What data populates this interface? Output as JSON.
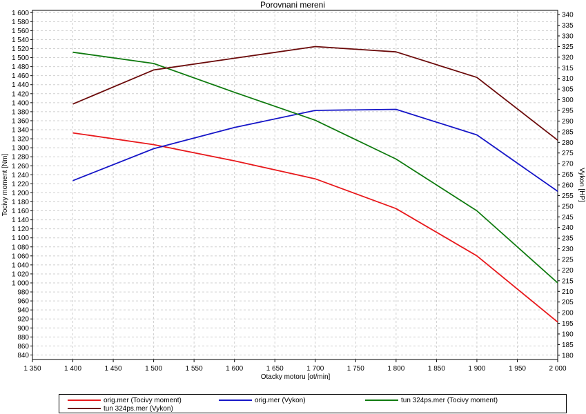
{
  "chart_data": {
    "type": "line",
    "title": "Porovnani mereni",
    "xlabel": "Otacky motoru [ot/min]",
    "ylabel_left": "Tocivy moment [Nm]",
    "ylabel_right": "Vykon [HP]",
    "xlim": [
      1350,
      2000
    ],
    "ylim_left": [
      830,
      1605
    ],
    "ylim_right": [
      178,
      342
    ],
    "x_ticks": [
      1350,
      1400,
      1450,
      1500,
      1550,
      1600,
      1650,
      1700,
      1750,
      1800,
      1850,
      1900,
      1950,
      2000
    ],
    "x_tick_labels": [
      "1 350",
      "1 400",
      "1 450",
      "1 500",
      "1 550",
      "1 600",
      "1 650",
      "1 700",
      "1 750",
      "1 800",
      "1 850",
      "1 900",
      "1 950",
      "2 000"
    ],
    "y_left_ticks": [
      840,
      860,
      880,
      900,
      920,
      940,
      960,
      980,
      1000,
      1020,
      1040,
      1060,
      1080,
      1100,
      1120,
      1140,
      1160,
      1180,
      1200,
      1220,
      1240,
      1260,
      1280,
      1300,
      1320,
      1340,
      1360,
      1380,
      1400,
      1420,
      1440,
      1460,
      1480,
      1500,
      1520,
      1540,
      1560,
      1580,
      1600
    ],
    "y_left_tick_labels": [
      "840",
      "860",
      "880",
      "900",
      "920",
      "940",
      "960",
      "980",
      "1 000",
      "1 020",
      "1 040",
      "1 060",
      "1 080",
      "1 100",
      "1 120",
      "1 140",
      "1 160",
      "1 180",
      "1 200",
      "1 220",
      "1 240",
      "1 260",
      "1 280",
      "1 300",
      "1 320",
      "1 340",
      "1 360",
      "1 380",
      "1 400",
      "1 420",
      "1 440",
      "1 460",
      "1 480",
      "1 500",
      "1 520",
      "1 540",
      "1 560",
      "1 580",
      "1 600"
    ],
    "y_right_ticks": [
      180,
      185,
      190,
      195,
      200,
      205,
      210,
      215,
      220,
      225,
      230,
      235,
      240,
      245,
      250,
      255,
      260,
      265,
      270,
      275,
      280,
      285,
      290,
      295,
      300,
      305,
      310,
      315,
      320,
      325,
      330,
      335,
      340
    ],
    "y_right_tick_labels": [
      "180",
      "185",
      "190",
      "195",
      "200",
      "205",
      "210",
      "215",
      "220",
      "225",
      "230",
      "235",
      "240",
      "245",
      "250",
      "255",
      "260",
      "265",
      "270",
      "275",
      "280",
      "285",
      "290",
      "295",
      "300",
      "305",
      "310",
      "315",
      "320",
      "325",
      "330",
      "335",
      "340"
    ],
    "grid": true,
    "legend_position": "bottom",
    "series": [
      {
        "name": "orig.mer  (Tocivy moment)",
        "axis": "left",
        "color": "#e8191c",
        "x": [
          1400,
          1500,
          1600,
          1700,
          1800,
          1900,
          2000
        ],
        "y": [
          1333,
          1307,
          1271,
          1231,
          1165,
          1060,
          913
        ]
      },
      {
        "name": "orig.mer  (Vykon)",
        "axis": "right",
        "color": "#1616c8",
        "x": [
          1400,
          1500,
          1600,
          1700,
          1800,
          1900,
          2000
        ],
        "y": [
          262,
          277,
          287,
          295,
          295.5,
          283.5,
          257
        ]
      },
      {
        "name": "tun 324ps.mer  (Tocivy moment)",
        "axis": "left",
        "color": "#0f7a0f",
        "x": [
          1400,
          1500,
          1600,
          1700,
          1800,
          1900,
          2000
        ],
        "y": [
          1512,
          1487,
          1423,
          1361,
          1275,
          1160,
          1000
        ]
      },
      {
        "name": "tun 324ps.mer  (Vykon)",
        "axis": "right",
        "color": "#6b0a0a",
        "x": [
          1400,
          1500,
          1600,
          1700,
          1800,
          1900,
          2000
        ],
        "y": [
          298,
          314,
          319.5,
          325,
          322.5,
          310.5,
          281
        ]
      }
    ]
  }
}
